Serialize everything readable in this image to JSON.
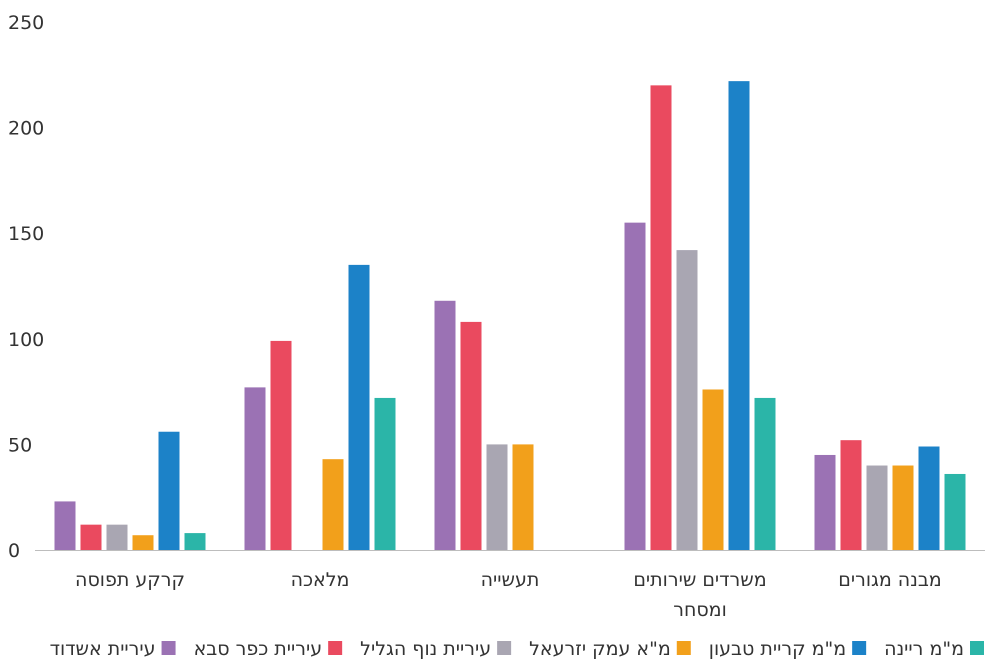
{
  "chart_data": {
    "type": "bar",
    "title": "",
    "xlabel": "",
    "ylabel": "",
    "ylim": [
      0,
      250
    ],
    "yticks": [
      0,
      50,
      100,
      150,
      200,
      250
    ],
    "grid": false,
    "legend_position": "bottom",
    "direction": "rtl",
    "categories": [
      {
        "lines": [
          "מבנה מגורים"
        ]
      },
      {
        "lines": [
          "משרדים שירותים",
          "ומסחר"
        ]
      },
      {
        "lines": [
          "תעשייה"
        ]
      },
      {
        "lines": [
          "מלאכה"
        ]
      },
      {
        "lines": [
          "קרקע תפוסה"
        ]
      }
    ],
    "series": [
      {
        "name": "מ\"מ ריינה",
        "color": "#2bb5a8",
        "values": [
          36,
          72,
          0,
          72,
          8
        ]
      },
      {
        "name": "מ\"מ קריית טבעון",
        "color": "#1c82c8",
        "values": [
          49,
          222,
          0,
          135,
          56
        ]
      },
      {
        "name": "מ\"א עמק יזרעאל",
        "color": "#f2a01b",
        "values": [
          40,
          76,
          50,
          43,
          7
        ]
      },
      {
        "name": "עיריית נוף הגליל",
        "color": "#a9a6b2",
        "values": [
          40,
          142,
          50,
          0,
          12
        ]
      },
      {
        "name": "עיריית כפר סבא",
        "color": "#ea4a5f",
        "values": [
          52,
          220,
          108,
          99,
          12
        ]
      },
      {
        "name": "עיריית אשדוד",
        "color": "#9b72b4",
        "values": [
          45,
          155,
          118,
          77,
          23
        ]
      }
    ]
  }
}
